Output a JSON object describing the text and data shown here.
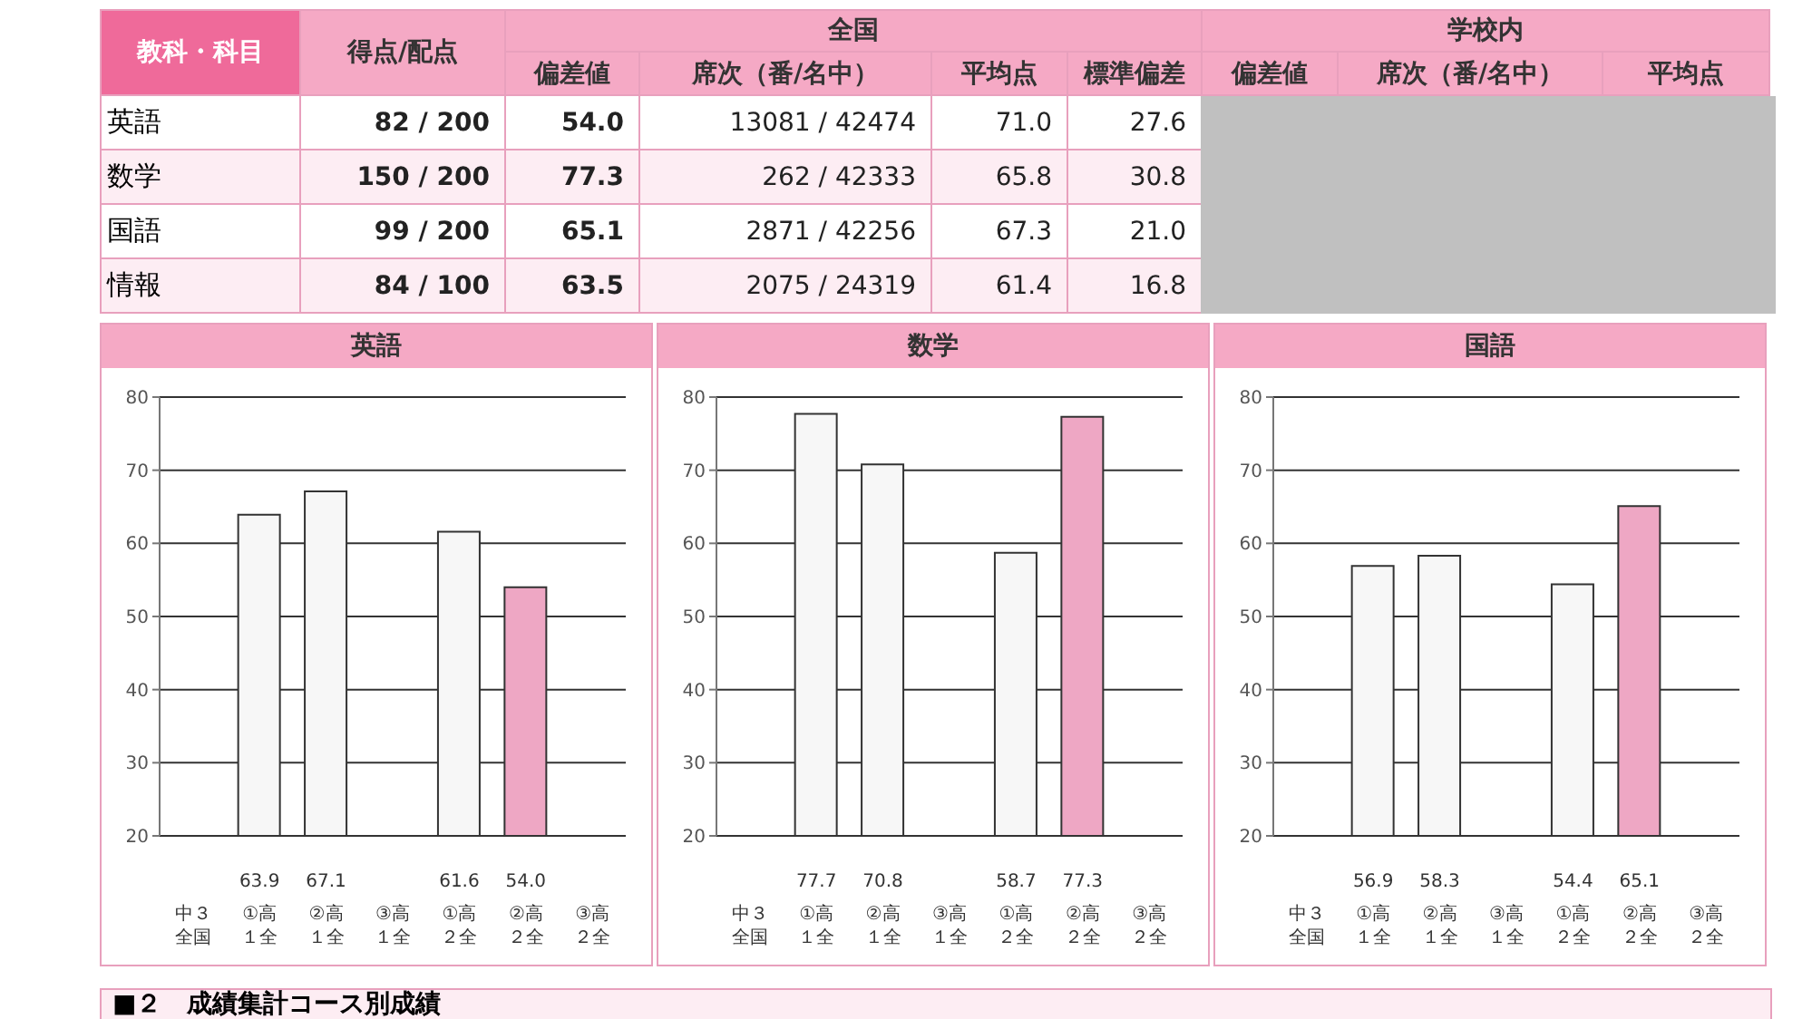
{
  "chart_data": [
    {
      "type": "other",
      "categories": [
        "教科・科目",
        "得点/配点",
        "偏差値",
        "席次（番/名中）",
        "平均点",
        "標準偏差",
        "偏差値",
        "席次（番/名中）",
        "平均点"
      ],
      "annotations": [
        "全国",
        "学校内"
      ],
      "y_categories": [
        "英語",
        "数学",
        "国語",
        "情報"
      ],
      "cell_labels": [
        [
          "82 / 200",
          "54.0",
          "13081 / 42474",
          "71.0",
          "27.6",
          null,
          null,
          null
        ],
        [
          "150 / 200",
          "77.3",
          "262 / 42333",
          "65.8",
          "30.8",
          null,
          null,
          null
        ],
        [
          "99 / 200",
          "65.1",
          "2871 / 42256",
          "67.3",
          "21.0",
          null,
          null,
          null
        ],
        [
          "84 / 100",
          "63.5",
          "2075 / 24319",
          "61.4",
          "16.8",
          null,
          null,
          null
        ]
      ]
    },
    {
      "type": "bar",
      "title": "英語",
      "categories": [
        "中３全国",
        "①高１全",
        "②高１全",
        "③高１全",
        "①高２全",
        "②高２全",
        "③高２全"
      ],
      "values": [
        null,
        63.9,
        67.1,
        null,
        61.6,
        54.0,
        null
      ],
      "colors": [
        null,
        "#f7f7f7",
        "#f7f7f7",
        null,
        "#f7f7f7",
        "#eea7c4",
        null
      ],
      "value_labels": [
        null,
        "63.9",
        "67.1",
        null,
        "61.6",
        "54.0",
        null
      ],
      "ylim": [
        20,
        80
      ],
      "yticks": [
        20,
        30,
        40,
        50,
        60,
        70,
        80
      ],
      "grid": "y"
    },
    {
      "type": "bar",
      "title": "数学",
      "categories": [
        "中３全国",
        "①高１全",
        "②高１全",
        "③高１全",
        "①高２全",
        "②高２全",
        "③高２全"
      ],
      "values": [
        null,
        77.7,
        70.8,
        null,
        58.7,
        77.3,
        null
      ],
      "colors": [
        null,
        "#f7f7f7",
        "#f7f7f7",
        null,
        "#f7f7f7",
        "#eea7c4",
        null
      ],
      "value_labels": [
        null,
        "77.7",
        "70.8",
        null,
        "58.7",
        "77.3",
        null
      ],
      "ylim": [
        20,
        80
      ],
      "yticks": [
        20,
        30,
        40,
        50,
        60,
        70,
        80
      ],
      "grid": "y"
    },
    {
      "type": "bar",
      "title": "国語",
      "categories": [
        "中３全国",
        "①高１全",
        "②高１全",
        "③高１全",
        "①高２全",
        "②高２全",
        "③高２全"
      ],
      "values": [
        null,
        56.9,
        58.3,
        null,
        54.4,
        65.1,
        null
      ],
      "colors": [
        null,
        "#f7f7f7",
        "#f7f7f7",
        null,
        "#f7f7f7",
        "#eea7c4",
        null
      ],
      "value_labels": [
        null,
        "56.9",
        "58.3",
        null,
        "54.4",
        "65.1",
        null
      ],
      "ylim": [
        20,
        80
      ],
      "yticks": [
        20,
        30,
        40,
        50,
        60,
        70,
        80
      ],
      "grid": "y"
    },
    {
      "type": "other",
      "title": "■２　成績集計コース別成績"
    }
  ]
}
